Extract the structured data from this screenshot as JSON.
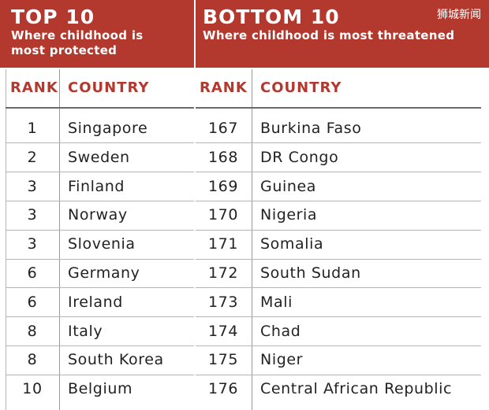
{
  "top": {
    "title": "TOP 10",
    "subtitle_line1": "Where childhood is",
    "subtitle_line2": "most protected",
    "headers": {
      "rank": "RANK",
      "country": "COUNTRY"
    }
  },
  "bottom": {
    "title": "BOTTOM 10",
    "subtitle": "Where childhood is most threatened",
    "headers": {
      "rank": "RANK",
      "country": "COUNTRY"
    }
  },
  "watermark": "狮城新闻",
  "colors": {
    "accent": "#b3382d",
    "text": "#222222",
    "rule": "#b5b5b5"
  },
  "chart_data": {
    "type": "table",
    "tables": [
      {
        "title": "TOP 10",
        "columns": [
          "RANK",
          "COUNTRY"
        ],
        "rows": [
          [
            "1",
            "Singapore"
          ],
          [
            "2",
            "Sweden"
          ],
          [
            "3",
            "Finland"
          ],
          [
            "3",
            "Norway"
          ],
          [
            "3",
            "Slovenia"
          ],
          [
            "6",
            "Germany"
          ],
          [
            "6",
            "Ireland"
          ],
          [
            "8",
            "Italy"
          ],
          [
            "8",
            "South Korea"
          ],
          [
            "10",
            "Belgium"
          ]
        ]
      },
      {
        "title": "BOTTOM 10",
        "columns": [
          "RANK",
          "COUNTRY"
        ],
        "rows": [
          [
            "167",
            "Burkina Faso"
          ],
          [
            "168",
            "DR Congo"
          ],
          [
            "169",
            "Guinea"
          ],
          [
            "170",
            "Nigeria"
          ],
          [
            "171",
            "Somalia"
          ],
          [
            "172",
            "South Sudan"
          ],
          [
            "173",
            "Mali"
          ],
          [
            "174",
            "Chad"
          ],
          [
            "175",
            "Niger"
          ],
          [
            "176",
            "Central African Republic"
          ]
        ]
      }
    ]
  }
}
